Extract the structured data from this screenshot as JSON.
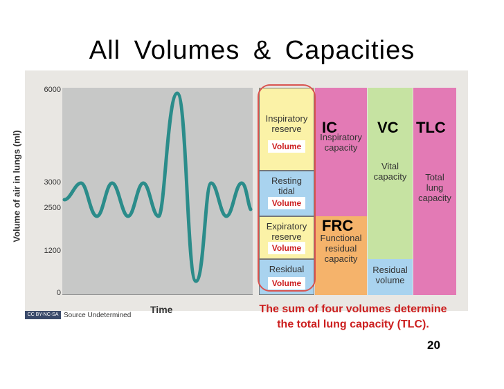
{
  "title": "All  Volumes  &  Capacities",
  "graph": {
    "y_axis_title": "Volume of air in lungs (ml)",
    "x_axis_title": "Time",
    "y_ticks": [
      "6000",
      "3000",
      "2500",
      "1200",
      "0"
    ]
  },
  "volumes": {
    "inspiratory_reserve": "Inspiratory reserve",
    "resting_tidal": "Resting tidal",
    "expiratory_reserve": "Expiratory reserve",
    "residual": "Residual",
    "tag": "Volume"
  },
  "capacities": {
    "ic_abbr": "IC",
    "ic_label": "Inspiratory capacity",
    "frc_abbr": "FRC",
    "frc_label": "Functional residual capacity",
    "vc_abbr": "VC",
    "vc_label": "Vital capacity",
    "residual_volume": "Residual volume",
    "tlc_abbr": "TLC",
    "tlc_label": "Total lung capacity"
  },
  "caption_line1": "The sum of four volumes determine",
  "caption_line2": "the total lung capacity (TLC).",
  "page_number": "20",
  "source_badge": "CC BY-NC-SA",
  "source_text": "Source Undetermined",
  "colors": {
    "inspiratory": "#fbf2a7",
    "tidal": "#a9d3ef",
    "capacity_pink": "#e37ab5",
    "frc_orange": "#f5b36b",
    "vc_green": "#c6e3a2",
    "wave": "#2b8c8a",
    "highlight": "#d9534f",
    "caption": "#cc1f1f"
  }
}
